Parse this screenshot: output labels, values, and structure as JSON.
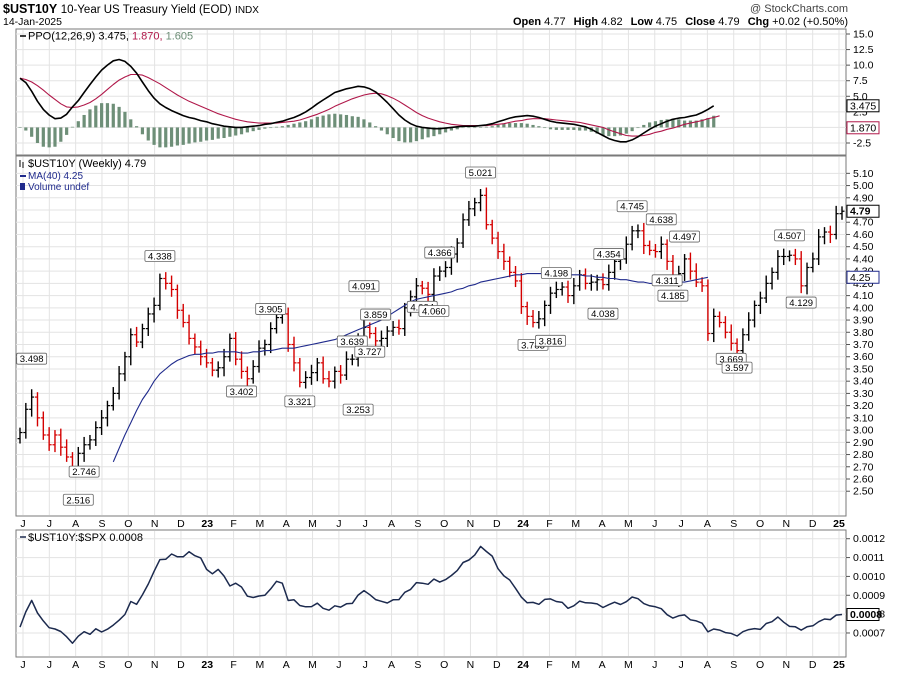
{
  "header": {
    "symbol": "$UST10Y",
    "description": "10-Year US Treasury Yield (EOD)",
    "exchange": "INDX",
    "date": "14-Jan-2025",
    "watermark": "@ StockCharts.com",
    "ohlc": {
      "open_label": "Open",
      "open": "4.77",
      "high_label": "High",
      "high": "4.82",
      "low_label": "Low",
      "low": "4.75",
      "close_label": "Close",
      "close": "4.79",
      "chg_label": "Chg",
      "chg": "+0.02 (+0.50%)"
    }
  },
  "colors": {
    "up_bar": "#000000",
    "down_bar": "#d40000",
    "ma_line": "#1f2a8c",
    "ppo_line": "#000000",
    "signal_line": "#b0184a",
    "histogram": "#6e8f78",
    "ratio_line": "#1c2a4e",
    "grid": "#e3e3e3"
  },
  "x_axis": {
    "ticks": [
      "J",
      "J",
      "A",
      "S",
      "O",
      "N",
      "D",
      "23",
      "F",
      "M",
      "A",
      "M",
      "J",
      "J",
      "A",
      "S",
      "O",
      "N",
      "D",
      "24",
      "F",
      "M",
      "A",
      "M",
      "J",
      "J",
      "A",
      "S",
      "O",
      "N",
      "D",
      "25"
    ],
    "bold_ticks": [
      "23",
      "24",
      "25"
    ]
  },
  "chart_data": [
    {
      "id": "ppo",
      "type": "line",
      "title": "PPO(12,26,9)",
      "legend_values": [
        "3.475",
        "1.870",
        "1.605"
      ],
      "ylim": [
        -2.5,
        15.0
      ],
      "yticks": [
        "15.0",
        "12.5",
        "10.0",
        "7.5",
        "5.0",
        "2.5",
        "0.0",
        "-2.5"
      ],
      "last_value_labels": [
        "3.475",
        "1.870"
      ],
      "series": [
        {
          "name": "PPO",
          "values": [
            7.9,
            7.2,
            5.8,
            4.2,
            2.9,
            2.0,
            1.4,
            1.5,
            2.1,
            3.3,
            4.3,
            5.6,
            6.9,
            8.1,
            9.2,
            10.0,
            10.7,
            10.9,
            10.6,
            9.8,
            8.7,
            7.3,
            5.9,
            4.7,
            3.8,
            3.2,
            2.7,
            2.3,
            1.9,
            1.6,
            1.4,
            1.1,
            0.9,
            0.6,
            0.4,
            0.2,
            0.1,
            0.0,
            0.0,
            0.1,
            0.2,
            0.3,
            0.5,
            0.6,
            0.8,
            1.0,
            1.3,
            1.6,
            2.0,
            2.5,
            3.1,
            3.8,
            4.4,
            5.0,
            5.6,
            5.9,
            6.2,
            6.4,
            6.6,
            6.5,
            6.2,
            5.7,
            4.9,
            4.0,
            3.0,
            2.0,
            1.2,
            0.6,
            0.2,
            0.0,
            -0.1,
            -0.2,
            -0.2,
            -0.1,
            0.0,
            0.1,
            0.2,
            0.2,
            0.2,
            0.3,
            0.4,
            0.6,
            0.9,
            1.2,
            1.5,
            1.7,
            1.8,
            1.9,
            1.8,
            1.6,
            1.3,
            1.0,
            0.8,
            0.7,
            0.6,
            0.5,
            0.3,
            0.1,
            -0.3,
            -0.8,
            -1.3,
            -1.8,
            -2.1,
            -2.3,
            -2.3,
            -2.0,
            -1.5,
            -0.9,
            -0.3,
            0.2,
            0.6,
            1.0,
            1.3,
            1.5,
            1.6,
            1.8,
            2.0,
            2.4,
            2.9,
            3.475
          ]
        },
        {
          "name": "Signal",
          "values": [
            7.9,
            7.7,
            7.3,
            6.7,
            6.0,
            5.2,
            4.5,
            3.8,
            3.3,
            3.2,
            3.3,
            3.6,
            4.0,
            4.6,
            5.3,
            6.1,
            6.9,
            7.6,
            8.1,
            8.5,
            8.5,
            8.4,
            8.0,
            7.5,
            7.0,
            6.4,
            5.8,
            5.2,
            4.7,
            4.2,
            3.8,
            3.4,
            3.0,
            2.6,
            2.2,
            1.9,
            1.6,
            1.3,
            1.1,
            0.9,
            0.8,
            0.7,
            0.7,
            0.7,
            0.7,
            0.8,
            0.9,
            1.0,
            1.2,
            1.5,
            1.8,
            2.1,
            2.5,
            2.9,
            3.4,
            3.8,
            4.2,
            4.6,
            4.9,
            5.2,
            5.4,
            5.5,
            5.4,
            5.1,
            4.7,
            4.2,
            3.6,
            3.0,
            2.4,
            1.9,
            1.5,
            1.2,
            0.9,
            0.7,
            0.5,
            0.4,
            0.3,
            0.3,
            0.3,
            0.3,
            0.3,
            0.4,
            0.5,
            0.6,
            0.8,
            1.0,
            1.1,
            1.3,
            1.4,
            1.4,
            1.4,
            1.3,
            1.2,
            1.1,
            1.0,
            0.9,
            0.8,
            0.6,
            0.4,
            0.2,
            0.0,
            -0.4,
            -0.7,
            -1.0,
            -1.3,
            -1.4,
            -1.4,
            -1.3,
            -1.1,
            -0.8,
            -0.6,
            -0.3,
            -0.1,
            0.2,
            0.5,
            0.7,
            0.9,
            1.1,
            1.4,
            1.6,
            1.87
          ]
        }
      ]
    },
    {
      "id": "price",
      "type": "ohlc",
      "title": "$UST10Y (Weekly)",
      "title_value": "4.79",
      "legend": [
        {
          "name": "MA(40)",
          "value": "4.25"
        },
        {
          "name": "Volume undef",
          "value": ""
        }
      ],
      "ylim": [
        2.42,
        5.16
      ],
      "yticks": [
        "5.10",
        "5.00",
        "4.90",
        "4.80",
        "4.70",
        "4.60",
        "4.50",
        "4.40",
        "4.30",
        "4.20",
        "4.10",
        "4.00",
        "3.90",
        "3.80",
        "3.70",
        "3.60",
        "3.50",
        "3.40",
        "3.30",
        "3.20",
        "3.10",
        "3.00",
        "2.90",
        "2.80",
        "2.70",
        "2.60",
        "2.50"
      ],
      "last_value_labels": [
        "4.79",
        "4.25"
      ],
      "bars": {
        "close": [
          2.98,
          3.17,
          3.27,
          3.1,
          2.96,
          2.88,
          2.96,
          2.86,
          2.78,
          2.68,
          2.81,
          2.88,
          2.92,
          3.02,
          3.1,
          3.2,
          3.3,
          3.46,
          3.6,
          3.78,
          3.72,
          3.83,
          3.95,
          4.02,
          4.24,
          4.2,
          4.15,
          3.98,
          3.88,
          3.75,
          3.68,
          3.6,
          3.55,
          3.49,
          3.51,
          3.6,
          3.75,
          3.58,
          3.48,
          3.42,
          3.52,
          3.67,
          3.7,
          3.83,
          3.92,
          3.95,
          3.7,
          3.55,
          3.39,
          3.43,
          3.47,
          3.55,
          3.42,
          3.4,
          3.48,
          3.45,
          3.58,
          3.58,
          3.74,
          3.84,
          3.79,
          3.73,
          3.75,
          3.81,
          3.84,
          3.83,
          4.0,
          4.09,
          4.18,
          4.16,
          4.11,
          4.26,
          4.3,
          4.33,
          4.44,
          4.53,
          4.72,
          4.81,
          4.86,
          4.92,
          4.68,
          4.57,
          4.46,
          4.38,
          4.29,
          4.22,
          4.01,
          3.93,
          3.88,
          3.91,
          4.02,
          4.12,
          4.15,
          4.17,
          4.1,
          4.18,
          4.27,
          4.2,
          4.21,
          4.23,
          4.19,
          4.29,
          4.38,
          4.4,
          4.52,
          4.63,
          4.63,
          4.51,
          4.47,
          4.46,
          4.52,
          4.38,
          4.22,
          4.28,
          4.4,
          4.3,
          4.21,
          4.18,
          3.79,
          3.93,
          3.88,
          3.8,
          3.71,
          3.65,
          3.78,
          3.9,
          4.02,
          4.08,
          4.2,
          4.29,
          4.42,
          4.42,
          4.43,
          4.4,
          4.18,
          4.33,
          4.4,
          4.58,
          4.62,
          4.6,
          4.77,
          4.79
        ],
        "up": [
          1,
          1,
          1,
          0,
          0,
          0,
          0,
          0,
          0,
          0,
          1,
          1,
          1,
          1,
          1,
          1,
          1,
          1,
          1,
          1,
          0,
          1,
          1,
          1,
          1,
          0,
          0,
          0,
          0,
          0,
          0,
          0,
          0,
          0,
          1,
          1,
          1,
          0,
          0,
          0,
          1,
          1,
          1,
          1,
          1,
          1,
          0,
          0,
          0,
          1,
          1,
          1,
          0,
          0,
          1,
          0,
          1,
          1,
          1,
          1,
          0,
          0,
          1,
          1,
          1,
          0,
          1,
          1,
          1,
          0,
          0,
          1,
          1,
          1,
          1,
          1,
          1,
          1,
          1,
          1,
          0,
          0,
          0,
          0,
          0,
          0,
          0,
          0,
          0,
          1,
          1,
          1,
          1,
          1,
          0,
          1,
          1,
          0,
          1,
          1,
          0,
          1,
          1,
          1,
          1,
          1,
          1,
          0,
          0,
          0,
          1,
          0,
          0,
          1,
          1,
          0,
          0,
          0,
          0,
          1,
          0,
          0,
          0,
          0,
          1,
          1,
          1,
          1,
          1,
          1,
          1,
          1,
          1,
          0,
          0,
          1,
          1,
          1,
          1,
          0,
          1,
          1
        ]
      },
      "ma40": [
        null,
        null,
        null,
        null,
        null,
        null,
        null,
        null,
        null,
        null,
        null,
        null,
        null,
        null,
        null,
        null,
        2.74,
        2.85,
        2.96,
        3.06,
        3.16,
        3.25,
        3.32,
        3.4,
        3.46,
        3.5,
        3.54,
        3.57,
        3.59,
        3.61,
        3.62,
        3.62,
        3.63,
        3.63,
        3.64,
        3.64,
        3.64,
        3.64,
        3.63,
        3.63,
        3.64,
        3.64,
        3.65,
        3.65,
        3.66,
        3.67,
        3.67,
        3.67,
        3.68,
        3.69,
        3.7,
        3.71,
        3.72,
        3.73,
        3.74,
        3.76,
        3.78,
        3.8,
        3.82,
        3.84,
        3.86,
        3.88,
        3.9,
        3.93,
        3.96,
        3.99,
        4.02,
        4.05,
        4.07,
        4.08,
        4.09,
        4.1,
        4.11,
        4.12,
        4.13,
        4.15,
        4.16,
        4.18,
        4.19,
        4.21,
        4.22,
        4.23,
        4.24,
        4.25,
        4.26,
        4.27,
        4.27,
        4.28,
        4.28,
        4.28,
        4.28,
        4.28,
        4.28,
        4.28,
        4.27,
        4.27,
        4.27,
        4.26,
        4.26,
        4.25,
        4.25,
        4.24,
        4.24,
        4.23,
        4.23,
        4.22,
        4.21,
        4.21,
        4.2,
        4.2,
        4.2,
        4.2,
        4.2,
        4.21,
        4.21,
        4.22,
        4.23,
        4.24,
        4.25
      ],
      "annotations": [
        {
          "label": "3.498",
          "value": 3.498
        },
        {
          "label": "2.746",
          "value": 2.746
        },
        {
          "label": "2.516",
          "value": 2.516
        },
        {
          "label": "4.338",
          "value": 4.338
        },
        {
          "label": "3.402",
          "value": 3.402
        },
        {
          "label": "3.905",
          "value": 3.905
        },
        {
          "label": "3.321",
          "value": 3.321
        },
        {
          "label": "4.091",
          "value": 4.091
        },
        {
          "label": "3.253",
          "value": 3.253
        },
        {
          "label": "3.639",
          "value": 3.639
        },
        {
          "label": "3.859",
          "value": 3.859
        },
        {
          "label": "3.727",
          "value": 3.727
        },
        {
          "label": "4.094",
          "value": 4.094
        },
        {
          "label": "4.366",
          "value": 4.366
        },
        {
          "label": "4.060",
          "value": 4.06
        },
        {
          "label": "5.021",
          "value": 5.021
        },
        {
          "label": "3.783",
          "value": 3.783
        },
        {
          "label": "4.198",
          "value": 4.198
        },
        {
          "label": "3.816",
          "value": 3.816
        },
        {
          "label": "4.354",
          "value": 4.354
        },
        {
          "label": "4.038",
          "value": 4.038
        },
        {
          "label": "4.745",
          "value": 4.745
        },
        {
          "label": "4.311",
          "value": 4.311
        },
        {
          "label": "4.638",
          "value": 4.638
        },
        {
          "label": "4.185",
          "value": 4.185
        },
        {
          "label": "4.497",
          "value": 4.497
        },
        {
          "label": "3.669",
          "value": 3.669
        },
        {
          "label": "3.597",
          "value": 3.597
        },
        {
          "label": "4.507",
          "value": 4.507
        },
        {
          "label": "4.129",
          "value": 4.129
        }
      ]
    },
    {
      "id": "ratio",
      "type": "line",
      "title": "$UST10Y:$SPX",
      "title_value": "0.0008",
      "ylim": [
        0.000615,
        0.001225
      ],
      "yticks": [
        "0.0012",
        "0.0011",
        "0.0010",
        "0.0009",
        "0.0008",
        "0.0007"
      ],
      "last_value_labels": [
        "0.0008"
      ],
      "series": [
        {
          "name": "$UST10Y:$SPX",
          "values": [
            0.000731,
            0.000812,
            0.000873,
            0.000806,
            0.000764,
            0.000728,
            0.000721,
            0.000708,
            0.00068,
            0.000646,
            0.000683,
            0.000707,
            0.000693,
            0.000722,
            0.000705,
            0.00072,
            0.000742,
            0.000768,
            0.000798,
            0.000867,
            0.000852,
            0.000902,
            0.00096,
            0.001027,
            0.001089,
            0.001091,
            0.001119,
            0.001104,
            0.001104,
            0.001131,
            0.00111,
            0.001098,
            0.001037,
            0.001014,
            0.001037,
            0.001002,
            0.000949,
            0.000964,
            0.000944,
            0.000895,
            0.000888,
            0.000896,
            0.0009,
            0.000934,
            0.000974,
            0.000964,
            0.000872,
            0.000876,
            0.000846,
            0.000839,
            0.00084,
            0.000858,
            0.000831,
            0.000821,
            0.000844,
            0.000837,
            0.000855,
            0.000857,
            0.000901,
            0.000925,
            0.000903,
            0.000877,
            0.000868,
            0.000859,
            0.000876,
            0.000877,
            0.000916,
            0.000931,
            0.000967,
            0.000964,
            0.000958,
            0.000986,
            0.00097,
            0.000983,
            0.001005,
            0.001031,
            0.001074,
            0.001087,
            0.001113,
            0.001159,
            0.001132,
            0.001108,
            0.001041,
            0.001003,
            0.000981,
            0.000937,
            0.00089,
            0.00086,
            0.000862,
            0.000852,
            0.000878,
            0.000881,
            0.000867,
            0.000862,
            0.000831,
            0.000844,
            0.000869,
            0.00086,
            0.000859,
            0.000854,
            0.000835,
            0.00085,
            0.000863,
            0.000851,
            0.000866,
            0.000891,
            0.000882,
            0.000856,
            0.000844,
            0.000839,
            0.000829,
            0.000797,
            0.000779,
            0.000791,
            0.000796,
            0.00077,
            0.000764,
            0.000752,
            0.000706,
            0.000721,
            0.000715,
            0.000702,
            0.000698,
            0.000684,
            0.000707,
            0.000718,
            0.000723,
            0.000719,
            0.00075,
            0.00076,
            0.000785,
            0.000757,
            0.000735,
            0.000733,
            0.000715,
            0.000733,
            0.000738,
            0.00076,
            0.000774,
            0.000771,
            0.000795,
            0.000798
          ]
        }
      ]
    }
  ]
}
